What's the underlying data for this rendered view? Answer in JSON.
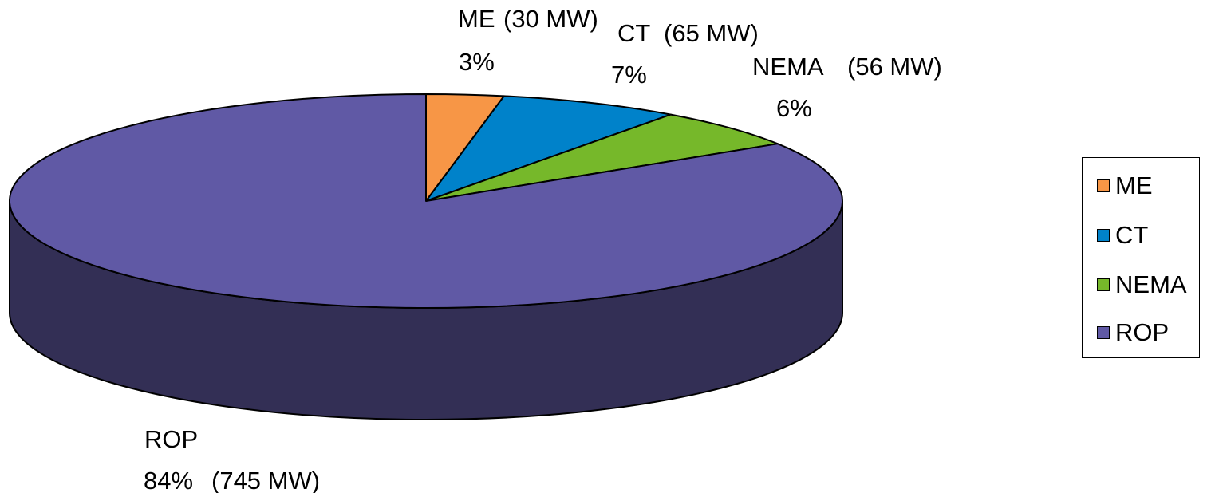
{
  "chart_data": {
    "type": "pie",
    "variant": "3d",
    "title": "",
    "categories": [
      "ME",
      "CT",
      "NEMA",
      "ROP"
    ],
    "values": [
      3,
      7,
      6,
      84
    ],
    "unit": "%",
    "colors": [
      "#F79646",
      "#0082CA",
      "#76B82A",
      "#6059A5"
    ],
    "side_color": "#332F55",
    "data_labels": [
      {
        "name": "ME",
        "mw": "(30 MW)",
        "pct": "3%"
      },
      {
        "name": "CT",
        "mw": "(65 MW)",
        "pct": "7%"
      },
      {
        "name": "NEMA",
        "mw": "(56 MW)",
        "pct": "6%"
      },
      {
        "name": "ROP",
        "mw": "(745 MW)",
        "pct": "84%"
      }
    ],
    "legend": {
      "position": "right",
      "items": [
        "ME",
        "CT",
        "NEMA",
        "ROP"
      ]
    }
  }
}
